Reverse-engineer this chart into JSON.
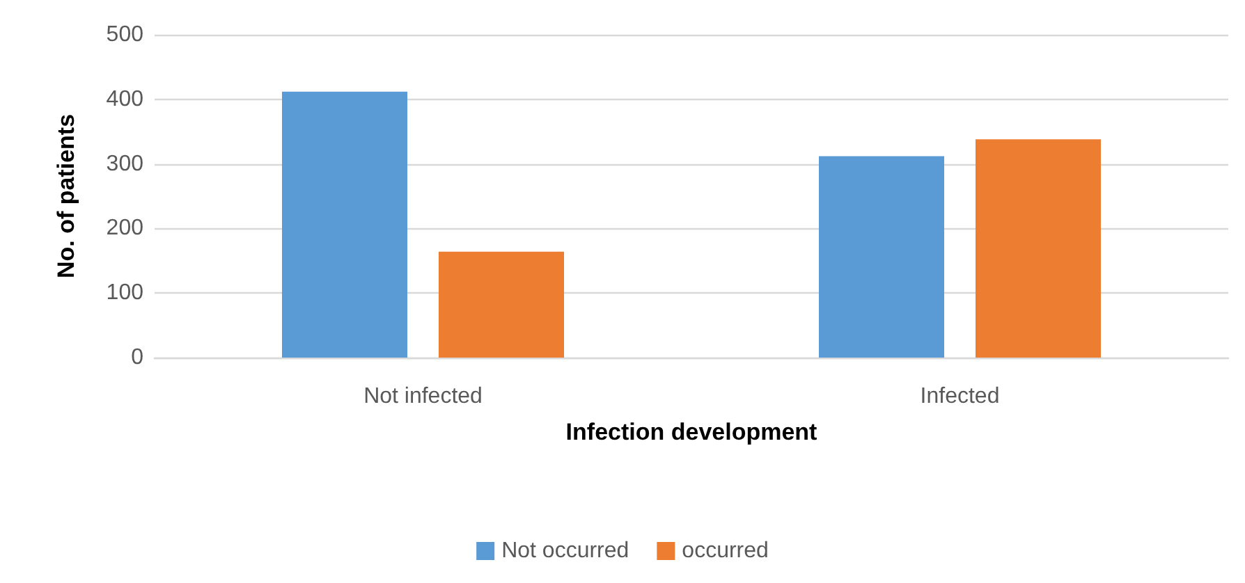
{
  "chart_data": {
    "type": "bar",
    "xlabel": "Infection development",
    "ylabel": "No. of patients",
    "categories": [
      "Not infected",
      "Infected"
    ],
    "series": [
      {
        "name": "Not occurred",
        "color": "#5b9bd5",
        "values": [
          412,
          312
        ]
      },
      {
        "name": "occurred",
        "color": "#ed7d31",
        "values": [
          164,
          338
        ]
      }
    ],
    "ylim": [
      0,
      500
    ],
    "yticks": [
      0,
      100,
      200,
      300,
      400,
      500
    ],
    "grid": "y",
    "legend": "bottom"
  }
}
